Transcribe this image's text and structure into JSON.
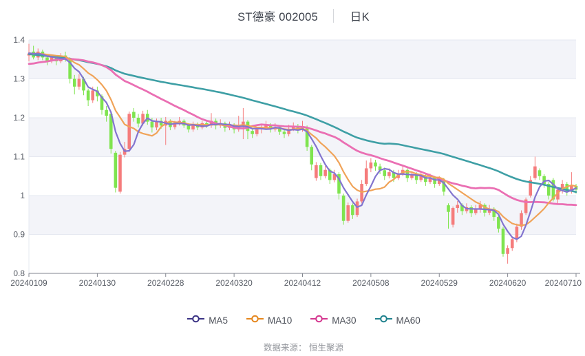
{
  "title": {
    "symbol": "ST德豪 002005",
    "separator": "│",
    "period": "日K"
  },
  "source": {
    "label": "数据来源： 恒生聚源"
  },
  "legend": [
    {
      "label": "MA5",
      "color": "#3a3284",
      "line_color": "#8274cf"
    },
    {
      "label": "MA10",
      "color": "#e5861c",
      "line_color": "#f0a358"
    },
    {
      "label": "MA30",
      "color": "#d4358e",
      "line_color": "#ea6fb3"
    },
    {
      "label": "MA60",
      "color": "#1f818d",
      "line_color": "#3e9fa5"
    }
  ],
  "colors": {
    "band": "#f3f4f9",
    "grid": "#e6e9f1",
    "axis_line": "#82868f",
    "label": "#565b64",
    "up": "#f57c7c",
    "down": "#7fe44f"
  },
  "chart_data": {
    "type": "candlestick",
    "title": "ST德豪 002005 日K",
    "x_ticks": [
      "20240109",
      "20240130",
      "20240228",
      "20240320",
      "20240412",
      "20240508",
      "20240529",
      "20240620",
      "20240710"
    ],
    "x_tick_interval": 15,
    "y_ticks": [
      0.8,
      0.9,
      1,
      1.1,
      1.2,
      1.3,
      1.4
    ],
    "ylim": [
      0.8,
      1.4
    ],
    "grid": true,
    "legend_position": "bottom",
    "ma_windows": [
      5,
      10,
      30,
      60
    ],
    "pre_closes": [
      1.44,
      1.44,
      1.43,
      1.44,
      1.43,
      1.42,
      1.43,
      1.42,
      1.42,
      1.41,
      1.42,
      1.41,
      1.4,
      1.41,
      1.4,
      1.39,
      1.4,
      1.39,
      1.38,
      1.39,
      1.38,
      1.37,
      1.38,
      1.36,
      1.35,
      1.36,
      1.34,
      1.33,
      1.34,
      1.32,
      1.31,
      1.32,
      1.3,
      1.31,
      1.3,
      1.29,
      1.3,
      1.31,
      1.3,
      1.32,
      1.31,
      1.33,
      1.32,
      1.34,
      1.33,
      1.35,
      1.34,
      1.36,
      1.35,
      1.36,
      1.35,
      1.37,
      1.36,
      1.37,
      1.36,
      1.37,
      1.36,
      1.37,
      1.365,
      1.37
    ],
    "candles_format": [
      "open",
      "close",
      "high",
      "low"
    ],
    "candles": [
      [
        1.36,
        1.365,
        1.39,
        1.345
      ],
      [
        1.37,
        1.355,
        1.385,
        1.35
      ],
      [
        1.355,
        1.37,
        1.378,
        1.348
      ],
      [
        1.37,
        1.355,
        1.375,
        1.348
      ],
      [
        1.355,
        1.345,
        1.362,
        1.335
      ],
      [
        1.345,
        1.356,
        1.362,
        1.34
      ],
      [
        1.356,
        1.345,
        1.36,
        1.335
      ],
      [
        1.345,
        1.36,
        1.366,
        1.34
      ],
      [
        1.36,
        1.35,
        1.37,
        1.344
      ],
      [
        1.35,
        1.3,
        1.355,
        1.288
      ],
      [
        1.3,
        1.28,
        1.31,
        1.26
      ],
      [
        1.28,
        1.3,
        1.312,
        1.272
      ],
      [
        1.3,
        1.27,
        1.305,
        1.258
      ],
      [
        1.27,
        1.245,
        1.275,
        1.23
      ],
      [
        1.245,
        1.27,
        1.28,
        1.238
      ],
      [
        1.27,
        1.255,
        1.28,
        1.242
      ],
      [
        1.255,
        1.22,
        1.26,
        1.208
      ],
      [
        1.22,
        1.205,
        1.23,
        1.19
      ],
      [
        1.21,
        1.12,
        1.215,
        1.108
      ],
      [
        1.11,
        1.02,
        1.115,
        1.008
      ],
      [
        1.01,
        1.105,
        1.112,
        1.005
      ],
      [
        1.105,
        1.12,
        1.138,
        1.098
      ],
      [
        1.12,
        1.21,
        1.216,
        1.112
      ],
      [
        1.215,
        1.2,
        1.225,
        1.19
      ],
      [
        1.2,
        1.185,
        1.21,
        1.175
      ],
      [
        1.185,
        1.21,
        1.218,
        1.18
      ],
      [
        1.21,
        1.19,
        1.22,
        1.182
      ],
      [
        1.19,
        1.175,
        1.2,
        1.162
      ],
      [
        1.175,
        1.192,
        1.198,
        1.168
      ],
      [
        1.192,
        1.18,
        1.2,
        1.172
      ],
      [
        1.18,
        1.192,
        1.202,
        1.13
      ],
      [
        1.192,
        1.176,
        1.196,
        1.168
      ],
      [
        1.176,
        1.186,
        1.192,
        1.17
      ],
      [
        1.186,
        1.192,
        1.202,
        1.18
      ],
      [
        1.192,
        1.18,
        1.196,
        1.174
      ],
      [
        1.18,
        1.17,
        1.186,
        1.162
      ],
      [
        1.17,
        1.182,
        1.19,
        1.164
      ],
      [
        1.182,
        1.175,
        1.188,
        1.168
      ],
      [
        1.175,
        1.186,
        1.192,
        1.17
      ],
      [
        1.186,
        1.18,
        1.192,
        1.174
      ],
      [
        1.18,
        1.192,
        1.212,
        1.174
      ],
      [
        1.192,
        1.18,
        1.198,
        1.17
      ],
      [
        1.18,
        1.186,
        1.196,
        1.174
      ],
      [
        1.186,
        1.174,
        1.19,
        1.164
      ],
      [
        1.174,
        1.182,
        1.19,
        1.168
      ],
      [
        1.182,
        1.17,
        1.186,
        1.16
      ],
      [
        1.17,
        1.176,
        1.205,
        1.164
      ],
      [
        1.176,
        1.19,
        1.225,
        1.145
      ],
      [
        1.19,
        1.166,
        1.194,
        1.145
      ],
      [
        1.166,
        1.158,
        1.174,
        1.148
      ],
      [
        1.158,
        1.17,
        1.176,
        1.152
      ],
      [
        1.17,
        1.176,
        1.184,
        1.16
      ],
      [
        1.176,
        1.182,
        1.192,
        1.17
      ],
      [
        1.182,
        1.17,
        1.186,
        1.162
      ],
      [
        1.17,
        1.176,
        1.186,
        1.164
      ],
      [
        1.176,
        1.164,
        1.18,
        1.156
      ],
      [
        1.164,
        1.158,
        1.17,
        1.148
      ],
      [
        1.158,
        1.172,
        1.182,
        1.152
      ],
      [
        1.172,
        1.178,
        1.188,
        1.166
      ],
      [
        1.178,
        1.17,
        1.184,
        1.16
      ],
      [
        1.17,
        1.176,
        1.192,
        1.164
      ],
      [
        1.176,
        1.125,
        1.18,
        1.115
      ],
      [
        1.125,
        1.08,
        1.13,
        1.065
      ],
      [
        1.045,
        1.078,
        1.086,
        1.038
      ],
      [
        1.078,
        1.05,
        1.084,
        1.04
      ],
      [
        1.05,
        1.066,
        1.076,
        1.044
      ],
      [
        1.066,
        1.04,
        1.07,
        1.03
      ],
      [
        1.04,
        1.055,
        1.066,
        1.034
      ],
      [
        1.055,
        1.005,
        1.06,
        0.99
      ],
      [
        1.0,
        0.935,
        1.005,
        0.925
      ],
      [
        0.935,
        0.975,
        0.982,
        0.93
      ],
      [
        0.975,
        0.95,
        0.98,
        0.94
      ],
      [
        0.95,
        0.985,
        0.992,
        0.945
      ],
      [
        0.985,
        1.03,
        1.04,
        0.98
      ],
      [
        1.03,
        1.07,
        1.09,
        1.025
      ],
      [
        1.07,
        1.085,
        1.096,
        1.06
      ],
      [
        1.085,
        1.075,
        1.092,
        1.064
      ],
      [
        1.075,
        1.065,
        1.082,
        1.055
      ],
      [
        1.065,
        1.05,
        1.072,
        1.04
      ],
      [
        1.05,
        1.06,
        1.07,
        1.044
      ],
      [
        1.06,
        1.045,
        1.066,
        1.035
      ],
      [
        1.045,
        1.056,
        1.066,
        1.04
      ],
      [
        1.056,
        1.066,
        1.076,
        1.05
      ],
      [
        1.066,
        1.045,
        1.07,
        1.035
      ],
      [
        1.045,
        1.056,
        1.062,
        1.04
      ],
      [
        1.056,
        1.04,
        1.06,
        1.03
      ],
      [
        1.04,
        1.05,
        1.06,
        1.035
      ],
      [
        1.05,
        1.035,
        1.055,
        1.025
      ],
      [
        1.035,
        1.046,
        1.056,
        1.03
      ],
      [
        1.046,
        1.03,
        1.05,
        1.02
      ],
      [
        1.03,
        1.04,
        1.05,
        1.025
      ],
      [
        1.04,
        1.01,
        1.045,
        1.0
      ],
      [
        0.975,
        0.958,
        0.98,
        0.915
      ],
      [
        0.925,
        0.968,
        0.972,
        0.918
      ],
      [
        0.968,
        0.976,
        0.986,
        0.956
      ],
      [
        0.976,
        0.96,
        0.98,
        0.95
      ],
      [
        0.96,
        0.97,
        0.98,
        0.954
      ],
      [
        0.97,
        0.955,
        0.975,
        0.945
      ],
      [
        0.955,
        0.966,
        0.976,
        0.95
      ],
      [
        0.966,
        0.976,
        0.986,
        0.956
      ],
      [
        0.976,
        0.956,
        0.98,
        0.946
      ],
      [
        0.956,
        0.966,
        0.976,
        0.95
      ],
      [
        0.966,
        0.945,
        0.97,
        0.935
      ],
      [
        0.945,
        0.915,
        0.95,
        0.905
      ],
      [
        0.915,
        0.85,
        0.92,
        0.843
      ],
      [
        0.85,
        0.865,
        0.872,
        0.825
      ],
      [
        0.865,
        0.888,
        0.895,
        0.858
      ],
      [
        0.888,
        0.92,
        0.928,
        0.88
      ],
      [
        0.92,
        0.955,
        0.962,
        0.912
      ],
      [
        0.955,
        0.99,
        0.995,
        0.95
      ],
      [
        1.0,
        1.04,
        1.05,
        0.995
      ],
      [
        1.045,
        1.075,
        1.1,
        1.04
      ],
      [
        1.065,
        1.05,
        1.07,
        1.04
      ],
      [
        1.05,
        1.03,
        1.055,
        1.02
      ],
      [
        1.03,
        1.0,
        1.035,
        0.99
      ],
      [
        1.04,
        0.99,
        1.045,
        0.985
      ],
      [
        0.99,
        1.015,
        1.02,
        0.98
      ],
      [
        1.015,
        1.03,
        1.04,
        1.005
      ],
      [
        1.03,
        1.01,
        1.035,
        1.0
      ],
      [
        1.01,
        1.025,
        1.06,
        1.005
      ],
      [
        1.025,
        1.015,
        1.03,
        1.005
      ]
    ]
  }
}
